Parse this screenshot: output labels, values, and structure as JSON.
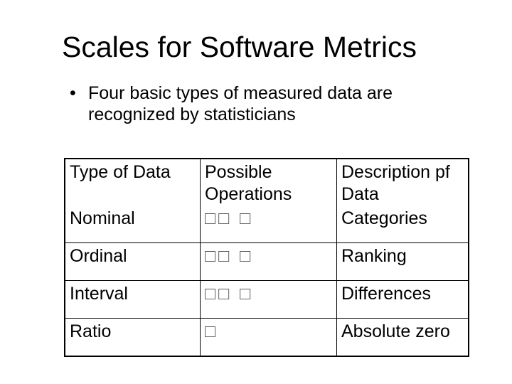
{
  "slide": {
    "title": "Scales for Software Metrics",
    "bullet": "Four basic types of measured data are recognized by statisticians",
    "bullet_glyph": "•"
  },
  "table": {
    "headers": [
      "Type of Data",
      "Possible Operations",
      "Description pf Data"
    ],
    "rows": [
      {
        "type": "Nominal",
        "ops": "□□ □",
        "desc": "Categories"
      },
      {
        "type": "Ordinal",
        "ops": "□□ □",
        "desc": "Ranking"
      },
      {
        "type": "Interval",
        "ops": "□□ □",
        "desc": "Differences"
      },
      {
        "type": "Ratio",
        "ops": "□",
        "desc": "Absolute zero"
      }
    ]
  }
}
